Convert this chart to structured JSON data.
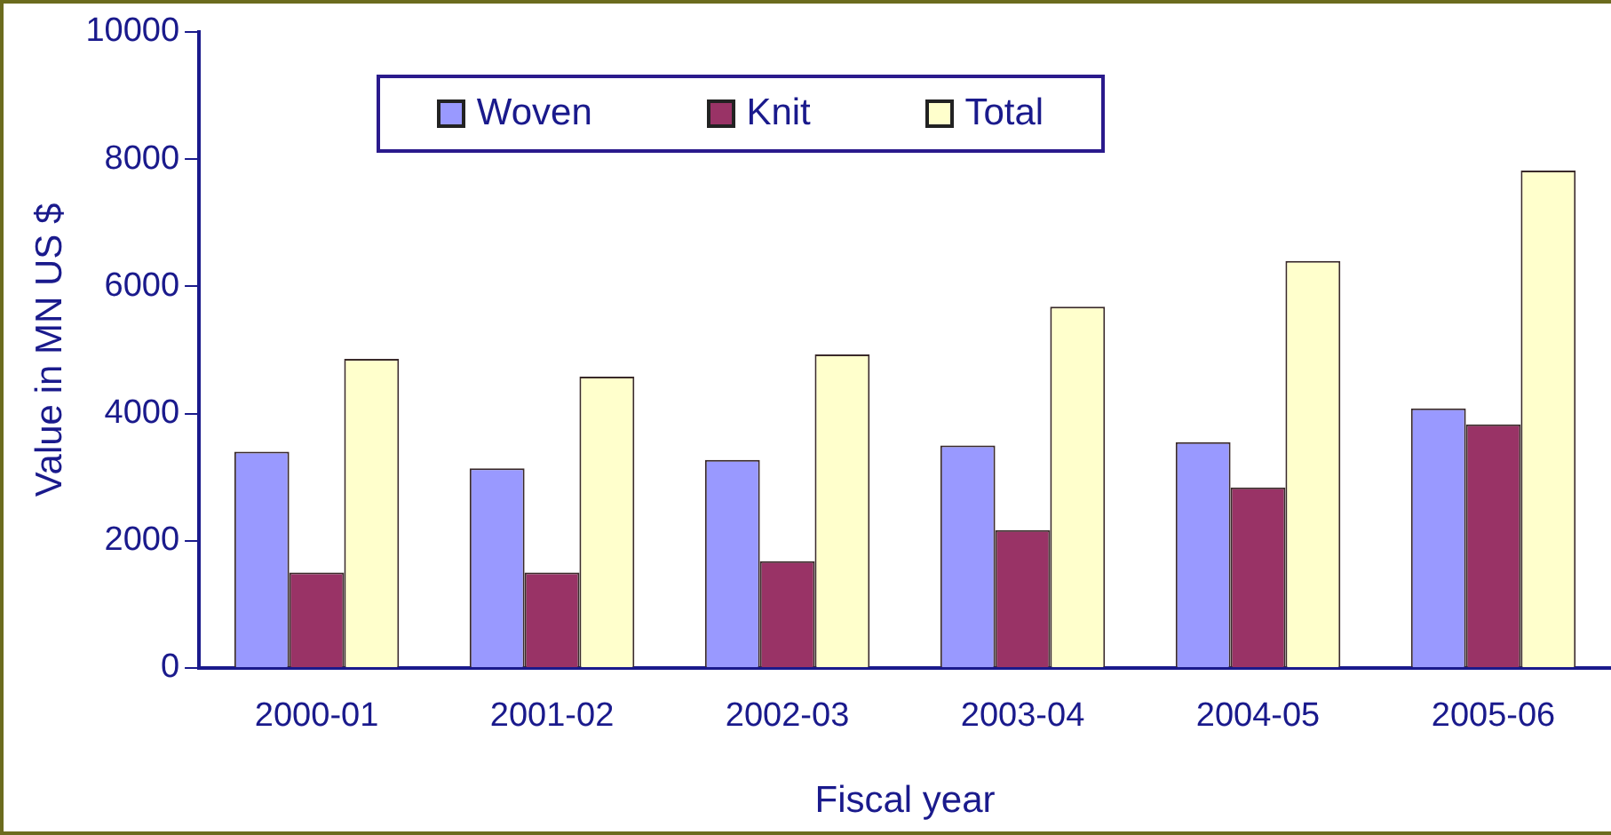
{
  "chart_data": {
    "type": "bar",
    "xlabel": "Fiscal year",
    "ylabel": "Value in MN US $",
    "categories": [
      "2000-01",
      "2001-02",
      "2002-03",
      "2003-04",
      "2004-05",
      "2005-06"
    ],
    "series": [
      {
        "name": "Woven",
        "color": "#9999ff",
        "values": [
          3400,
          3140,
          3270,
          3500,
          3550,
          4080
        ]
      },
      {
        "name": "Knit",
        "color": "#993366",
        "values": [
          1500,
          1500,
          1680,
          2170,
          2840,
          3830
        ]
      },
      {
        "name": "Total",
        "color": "#ffffcc",
        "values": [
          4860,
          4580,
          4930,
          5680,
          6400,
          7820
        ]
      }
    ],
    "ylim": [
      0,
      10000
    ],
    "yticks": [
      0,
      2000,
      4000,
      6000,
      8000,
      10000
    ],
    "grid": false,
    "legend": "top"
  }
}
